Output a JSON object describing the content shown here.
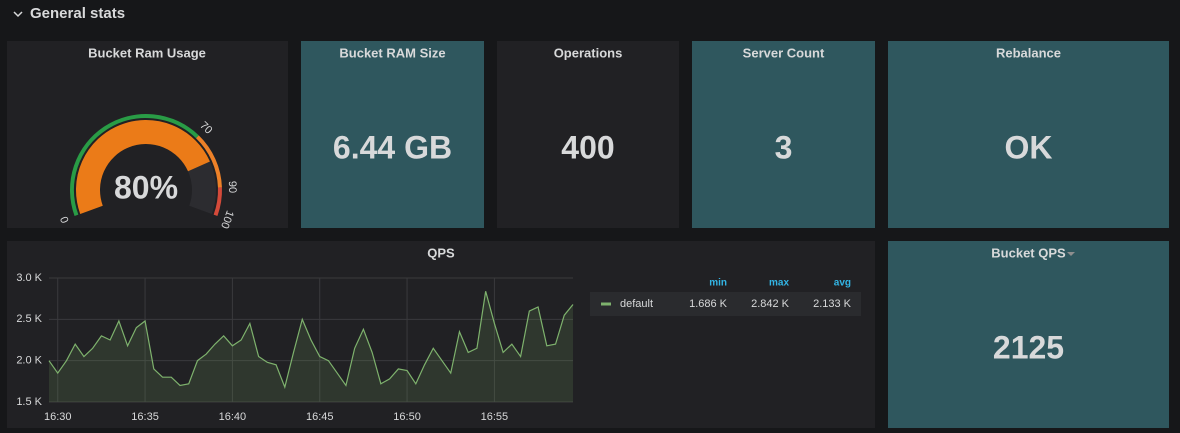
{
  "header": {
    "title": "General stats"
  },
  "gauge": {
    "title": "Bucket Ram Usage",
    "value": 80,
    "value_label": "80%",
    "color": "#eb7b18",
    "thresholds": [
      0,
      70,
      90,
      100
    ],
    "threshold_colors": [
      "#299c46",
      "#ed8128",
      "#d44a3a"
    ]
  },
  "stats": [
    {
      "title": "Bucket RAM Size",
      "value": "6.44 GB",
      "background": "#2f575e"
    },
    {
      "title": "Operations",
      "value": "400",
      "background": "#212124"
    },
    {
      "title": "Server Count",
      "value": "3",
      "background": "#2f575e"
    },
    {
      "title": "Rebalance",
      "value": "OK",
      "background": "#2f575e"
    },
    {
      "title": "Bucket QPS",
      "value": "2125",
      "background": "#2f575e"
    }
  ],
  "chart_data": {
    "type": "line",
    "title": "QPS",
    "categories": [
      null,
      "16:30",
      null,
      null,
      null,
      null,
      null,
      null,
      null,
      null,
      null,
      "16:35",
      null,
      null,
      null,
      null,
      null,
      null,
      null,
      null,
      null,
      "16:40",
      null,
      null,
      null,
      null,
      null,
      null,
      null,
      null,
      null,
      "16:45",
      null,
      null,
      null,
      null,
      null,
      null,
      null,
      null,
      null,
      "16:50",
      null,
      null,
      null,
      null,
      null,
      null,
      null,
      null,
      null,
      "16:55",
      null,
      null,
      null,
      null,
      null,
      null,
      null,
      null,
      null
    ],
    "series": [
      {
        "name": "default",
        "color": "#7eb26d",
        "values": [
          2000,
          1850,
          2000,
          2200,
          2050,
          2150,
          2300,
          2250,
          2480,
          2180,
          2400,
          2480,
          1900,
          1800,
          1800,
          1700,
          1720,
          2000,
          2080,
          2200,
          2300,
          2180,
          2250,
          2450,
          2050,
          1980,
          1950,
          1680,
          2100,
          2500,
          2250,
          2050,
          2000,
          1850,
          1700,
          2150,
          2380,
          2100,
          1720,
          1780,
          1900,
          1880,
          1720,
          1950,
          2150,
          2000,
          1850,
          2350,
          2100,
          2150,
          2840,
          2450,
          2100,
          2200,
          2050,
          2600,
          2650,
          2180,
          2200,
          2550,
          2680
        ]
      }
    ],
    "ylim": [
      1500,
      3000
    ],
    "yticks": [
      {
        "value": 1500,
        "label": "1.5 K"
      },
      {
        "value": 2000,
        "label": "2.0 K"
      },
      {
        "value": 2500,
        "label": "2.5 K"
      },
      {
        "value": 3000,
        "label": "3.0 K"
      }
    ],
    "grid": true,
    "legend_columns": [
      "min",
      "max",
      "avg"
    ],
    "legend_values": [
      "1.686 K",
      "2.842 K",
      "2.133 K"
    ]
  }
}
